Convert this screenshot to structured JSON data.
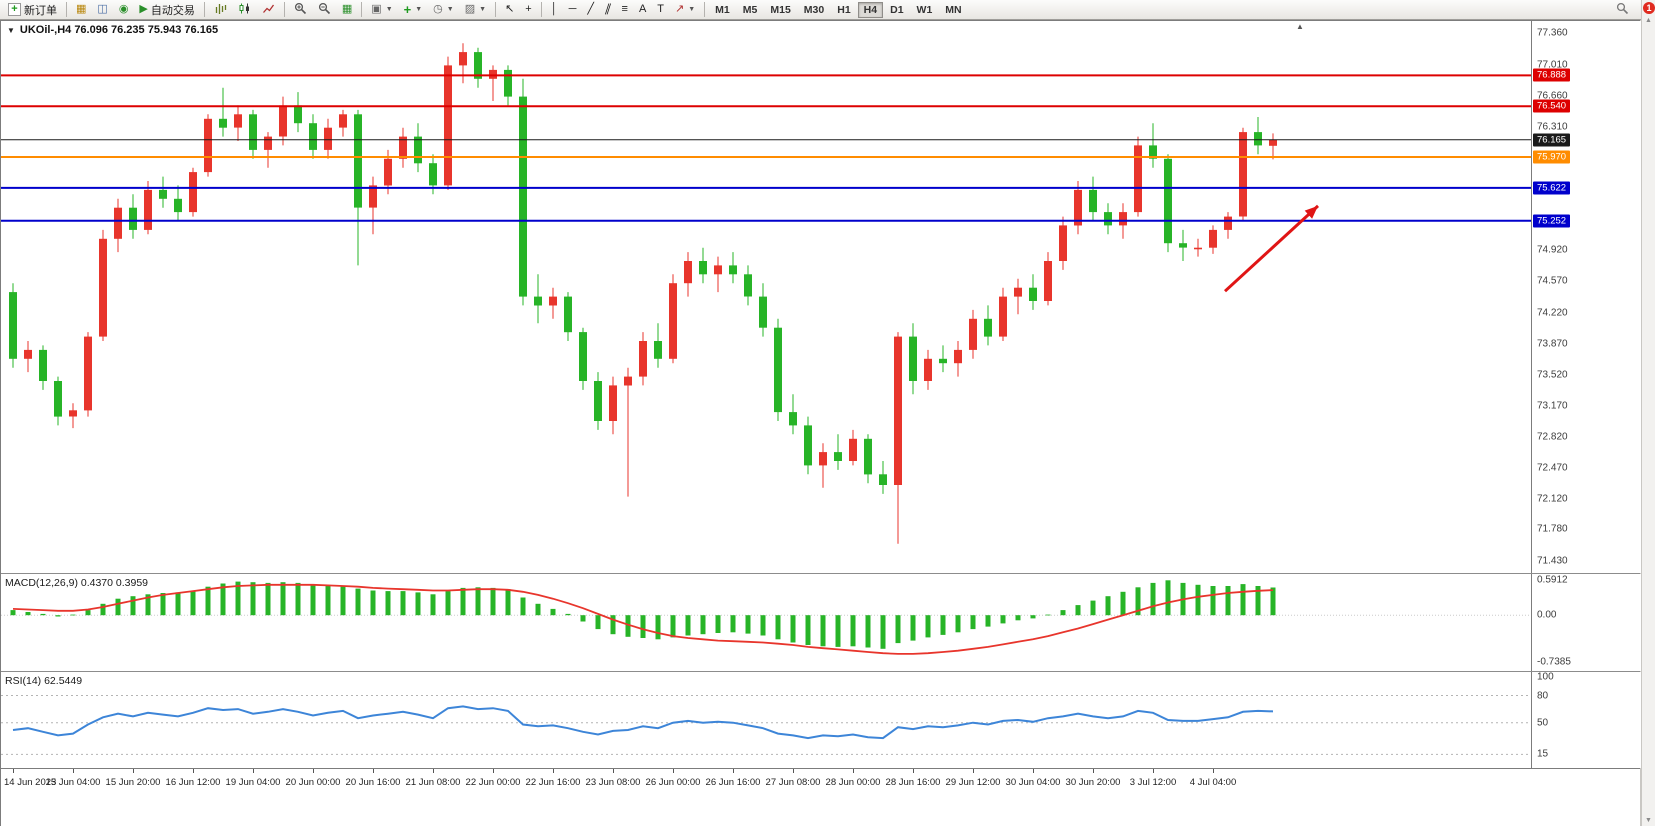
{
  "toolbar": {
    "new_order_label": "新订单",
    "auto_trading_label": "自动交易",
    "timeframes": [
      "M1",
      "M5",
      "M15",
      "M30",
      "H1",
      "H4",
      "D1",
      "W1",
      "MN"
    ],
    "notification_count": "1"
  },
  "chart": {
    "symbol": "UKOil-",
    "period": "H4",
    "title": "UKOil-,H4 76.096 76.235 75.943 76.165"
  },
  "indicators": {
    "macd": {
      "label": "MACD(12,26,9) 0.4370 0.3959"
    },
    "rsi": {
      "label": "RSI(14) 62.5449"
    }
  },
  "chart_data": [
    {
      "type": "candlestick",
      "symbol": "UKOil-",
      "timeframe": "H4",
      "last_bar": {
        "open": 76.096,
        "high": 76.235,
        "low": 75.943,
        "close": 76.165
      },
      "ylim": [
        71.29,
        77.5
      ],
      "up_color": "#e8352c",
      "down_color": "#27b427",
      "candles": [
        [
          74.45,
          74.55,
          73.6,
          73.7
        ],
        [
          73.7,
          73.9,
          73.55,
          73.8
        ],
        [
          73.8,
          73.85,
          73.35,
          73.45
        ],
        [
          73.45,
          73.5,
          72.95,
          73.05
        ],
        [
          73.05,
          73.2,
          72.92,
          73.12
        ],
        [
          73.12,
          74.0,
          73.05,
          73.95
        ],
        [
          73.95,
          75.15,
          73.9,
          75.05
        ],
        [
          75.05,
          75.5,
          74.9,
          75.4
        ],
        [
          75.4,
          75.55,
          75.05,
          75.15
        ],
        [
          75.15,
          75.7,
          75.1,
          75.6
        ],
        [
          75.6,
          75.75,
          75.4,
          75.5
        ],
        [
          75.5,
          75.65,
          75.25,
          75.35
        ],
        [
          75.35,
          75.85,
          75.3,
          75.8
        ],
        [
          75.8,
          76.45,
          75.75,
          76.4
        ],
        [
          76.4,
          76.75,
          76.2,
          76.3
        ],
        [
          76.3,
          76.55,
          76.15,
          76.45
        ],
        [
          76.45,
          76.5,
          75.95,
          76.05
        ],
        [
          76.05,
          76.25,
          75.85,
          76.2
        ],
        [
          76.2,
          76.65,
          76.1,
          76.55
        ],
        [
          76.55,
          76.7,
          76.25,
          76.35
        ],
        [
          76.35,
          76.45,
          75.95,
          76.05
        ],
        [
          76.05,
          76.4,
          75.95,
          76.3
        ],
        [
          76.3,
          76.5,
          76.2,
          76.45
        ],
        [
          76.45,
          76.5,
          74.75,
          75.4
        ],
        [
          75.4,
          75.75,
          75.1,
          75.65
        ],
        [
          75.65,
          76.05,
          75.55,
          75.95
        ],
        [
          75.95,
          76.3,
          75.85,
          76.2
        ],
        [
          76.2,
          76.35,
          75.8,
          75.9
        ],
        [
          75.9,
          76.0,
          75.55,
          75.65
        ],
        [
          75.65,
          77.1,
          75.6,
          77.0
        ],
        [
          77.0,
          77.25,
          76.8,
          77.15
        ],
        [
          77.15,
          77.2,
          76.75,
          76.85
        ],
        [
          76.85,
          77.0,
          76.6,
          76.95
        ],
        [
          76.95,
          77.0,
          76.55,
          76.65
        ],
        [
          76.65,
          76.85,
          74.3,
          74.4
        ],
        [
          74.4,
          74.65,
          74.1,
          74.3
        ],
        [
          74.3,
          74.5,
          74.15,
          74.4
        ],
        [
          74.4,
          74.45,
          73.9,
          74.0
        ],
        [
          74.0,
          74.05,
          73.35,
          73.45
        ],
        [
          73.45,
          73.55,
          72.9,
          73.0
        ],
        [
          73.0,
          73.5,
          72.85,
          73.4
        ],
        [
          73.4,
          73.6,
          72.15,
          73.5
        ],
        [
          73.5,
          74.0,
          73.4,
          73.9
        ],
        [
          73.9,
          74.1,
          73.6,
          73.7
        ],
        [
          73.7,
          74.65,
          73.65,
          74.55
        ],
        [
          74.55,
          74.9,
          74.4,
          74.8
        ],
        [
          74.8,
          74.95,
          74.55,
          74.65
        ],
        [
          74.65,
          74.85,
          74.45,
          74.75
        ],
        [
          74.75,
          74.9,
          74.55,
          74.65
        ],
        [
          74.65,
          74.75,
          74.3,
          74.4
        ],
        [
          74.4,
          74.55,
          73.95,
          74.05
        ],
        [
          74.05,
          74.15,
          73.0,
          73.1
        ],
        [
          73.1,
          73.3,
          72.85,
          72.95
        ],
        [
          72.95,
          73.05,
          72.4,
          72.5
        ],
        [
          72.5,
          72.75,
          72.25,
          72.65
        ],
        [
          72.65,
          72.85,
          72.45,
          72.55
        ],
        [
          72.55,
          72.9,
          72.5,
          72.8
        ],
        [
          72.8,
          72.85,
          72.3,
          72.4
        ],
        [
          72.4,
          72.55,
          72.18,
          72.28
        ],
        [
          72.28,
          74.0,
          71.62,
          73.95
        ],
        [
          73.95,
          74.1,
          73.3,
          73.45
        ],
        [
          73.45,
          73.8,
          73.35,
          73.7
        ],
        [
          73.7,
          73.85,
          73.55,
          73.65
        ],
        [
          73.65,
          73.9,
          73.5,
          73.8
        ],
        [
          73.8,
          74.25,
          73.7,
          74.15
        ],
        [
          74.15,
          74.3,
          73.85,
          73.95
        ],
        [
          73.95,
          74.5,
          73.9,
          74.4
        ],
        [
          74.4,
          74.6,
          74.2,
          74.5
        ],
        [
          74.5,
          74.65,
          74.25,
          74.35
        ],
        [
          74.35,
          74.9,
          74.3,
          74.8
        ],
        [
          74.8,
          75.3,
          74.7,
          75.2
        ],
        [
          75.2,
          75.7,
          75.1,
          75.6
        ],
        [
          75.6,
          75.75,
          75.25,
          75.35
        ],
        [
          75.35,
          75.45,
          75.1,
          75.2
        ],
        [
          75.2,
          75.45,
          75.05,
          75.35
        ],
        [
          75.35,
          76.2,
          75.3,
          76.1
        ],
        [
          76.1,
          76.35,
          75.85,
          75.95
        ],
        [
          75.95,
          76.0,
          74.9,
          75.0
        ],
        [
          75.0,
          75.15,
          74.8,
          74.95
        ],
        [
          74.95,
          75.05,
          74.85,
          74.95
        ],
        [
          74.95,
          75.2,
          74.88,
          75.15
        ],
        [
          75.15,
          75.35,
          75.05,
          75.3
        ],
        [
          75.3,
          76.3,
          75.25,
          76.25
        ],
        [
          76.25,
          76.42,
          76.0,
          76.1
        ],
        [
          76.096,
          76.235,
          75.943,
          76.165
        ]
      ],
      "hlines": [
        {
          "price": 76.888,
          "label": "76.888",
          "color": "#dd0000",
          "width": 2
        },
        {
          "price": 76.54,
          "label": "76.540",
          "color": "#dd0000",
          "width": 2
        },
        {
          "price": 76.165,
          "label": "76.165",
          "color": "#1a1a1a",
          "width": 1,
          "current": true
        },
        {
          "price": 75.97,
          "label": "75.970",
          "color": "#ff8c00",
          "width": 2
        },
        {
          "price": 75.622,
          "label": "75.622",
          "color": "#0000cc",
          "width": 2
        },
        {
          "price": 75.252,
          "label": "75.252",
          "color": "#0000cc",
          "width": 2
        }
      ],
      "annotations": [
        {
          "type": "arrow",
          "color": "#e01515",
          "from_bar": 80.8,
          "from_price": 74.46,
          "to_bar": 87.0,
          "to_price": 75.42
        }
      ],
      "y_ticks": [
        "77.360",
        "77.010",
        "76.660",
        "76.310",
        "74.920",
        "74.570",
        "74.220",
        "73.870",
        "73.520",
        "73.170",
        "72.820",
        "72.470",
        "72.120",
        "71.780",
        "71.430"
      ],
      "x_labels": [
        "14 Jun 2023",
        "15 Jun 04:00",
        "15 Jun 20:00",
        "16 Jun 12:00",
        "19 Jun 04:00",
        "20 Jun 00:00",
        "20 Jun 16:00",
        "21 Jun 08:00",
        "22 Jun 00:00",
        "22 Jun 16:00",
        "23 Jun 08:00",
        "26 Jun 00:00",
        "26 Jun 16:00",
        "27 Jun 08:00",
        "28 Jun 00:00",
        "28 Jun 16:00",
        "29 Jun 12:00",
        "30 Jun 04:00",
        "30 Jun 20:00",
        "3 Jul 12:00",
        "4 Jul 04:00"
      ],
      "x_label_every": 4
    },
    {
      "type": "bar",
      "name": "MACD(12,26,9)",
      "values": [
        0.437,
        0.3959
      ],
      "hist_color": "#27b427",
      "signal_color": "#e8352c",
      "ylim": [
        -0.88,
        0.65
      ],
      "y_ticks": [
        "0.5912",
        "0.00",
        "-0.7385"
      ],
      "histogram": [
        0.08,
        0.05,
        0.02,
        -0.02,
        0.01,
        0.08,
        0.18,
        0.26,
        0.3,
        0.33,
        0.35,
        0.36,
        0.38,
        0.45,
        0.5,
        0.53,
        0.52,
        0.51,
        0.52,
        0.51,
        0.48,
        0.46,
        0.46,
        0.42,
        0.39,
        0.38,
        0.38,
        0.36,
        0.33,
        0.38,
        0.43,
        0.44,
        0.43,
        0.41,
        0.28,
        0.18,
        0.1,
        0.02,
        -0.1,
        -0.22,
        -0.3,
        -0.34,
        -0.36,
        -0.38,
        -0.35,
        -0.32,
        -0.3,
        -0.28,
        -0.27,
        -0.29,
        -0.32,
        -0.38,
        -0.43,
        -0.47,
        -0.49,
        -0.5,
        -0.49,
        -0.51,
        -0.53,
        -0.44,
        -0.4,
        -0.35,
        -0.31,
        -0.27,
        -0.22,
        -0.18,
        -0.13,
        -0.08,
        -0.05,
        0.01,
        0.08,
        0.16,
        0.23,
        0.3,
        0.37,
        0.44,
        0.51,
        0.55,
        0.51,
        0.48,
        0.46,
        0.46,
        0.49,
        0.46,
        0.437
      ],
      "signal": [
        0.1,
        0.09,
        0.08,
        0.07,
        0.07,
        0.09,
        0.13,
        0.18,
        0.23,
        0.28,
        0.32,
        0.35,
        0.38,
        0.41,
        0.44,
        0.46,
        0.47,
        0.48,
        0.48,
        0.48,
        0.48,
        0.47,
        0.46,
        0.45,
        0.43,
        0.42,
        0.41,
        0.4,
        0.39,
        0.39,
        0.4,
        0.41,
        0.41,
        0.4,
        0.37,
        0.32,
        0.26,
        0.19,
        0.11,
        0.02,
        -0.07,
        -0.15,
        -0.22,
        -0.28,
        -0.33,
        -0.36,
        -0.38,
        -0.4,
        -0.41,
        -0.42,
        -0.43,
        -0.45,
        -0.47,
        -0.5,
        -0.52,
        -0.54,
        -0.56,
        -0.58,
        -0.6,
        -0.61,
        -0.61,
        -0.6,
        -0.58,
        -0.56,
        -0.53,
        -0.5,
        -0.46,
        -0.42,
        -0.38,
        -0.33,
        -0.27,
        -0.21,
        -0.14,
        -0.07,
        0.0,
        0.07,
        0.14,
        0.2,
        0.25,
        0.29,
        0.32,
        0.35,
        0.37,
        0.385,
        0.3959
      ]
    },
    {
      "type": "line",
      "name": "RSI(14)",
      "value": 62.5449,
      "color": "#3d85d8",
      "ylim": [
        0,
        106
      ],
      "levels": [
        80,
        50,
        15
      ],
      "y_ticks": [
        "100",
        "80",
        "50",
        "15"
      ],
      "values": [
        42,
        44,
        40,
        36,
        38,
        48,
        56,
        60,
        57,
        61,
        59,
        57,
        61,
        66,
        64,
        65,
        60,
        62,
        65,
        62,
        58,
        61,
        63,
        55,
        58,
        60,
        62,
        59,
        55,
        66,
        68,
        65,
        66,
        63,
        48,
        46,
        47,
        44,
        40,
        37,
        41,
        42,
        46,
        44,
        50,
        52,
        50,
        51,
        50,
        47,
        44,
        38,
        36,
        33,
        36,
        35,
        37,
        34,
        33,
        45,
        43,
        46,
        45,
        47,
        50,
        48,
        52,
        53,
        51,
        55,
        57,
        60,
        57,
        55,
        57,
        63,
        61,
        53,
        52,
        52,
        54,
        56,
        62,
        63,
        62.5
      ]
    }
  ]
}
